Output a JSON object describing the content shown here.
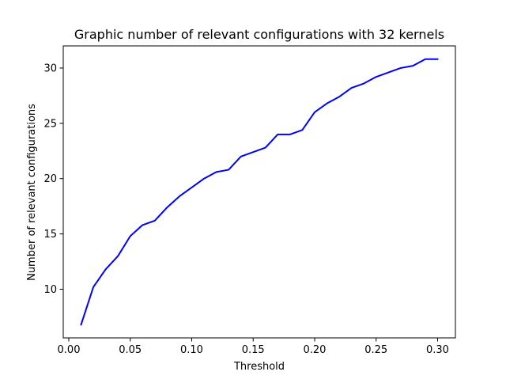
{
  "chart_data": {
    "type": "line",
    "title": "Graphic number of relevant configurations with 32 kernels",
    "xlabel": "Threshold",
    "ylabel": "Number of relevant configurations",
    "xlim": [
      -0.0045,
      0.3145
    ],
    "ylim": [
      5.6,
      32.0
    ],
    "x_ticks": [
      0.0,
      0.05,
      0.1,
      0.15,
      0.2,
      0.25,
      0.3
    ],
    "x_tick_labels": [
      "0.00",
      "0.05",
      "0.10",
      "0.15",
      "0.20",
      "0.25",
      "0.30"
    ],
    "y_ticks": [
      10,
      15,
      20,
      25,
      30
    ],
    "y_tick_labels": [
      "10",
      "15",
      "20",
      "25",
      "30"
    ],
    "grid": false,
    "legend": "none",
    "series": [
      {
        "color": "#0000ff",
        "x": [
          0.01,
          0.02,
          0.03,
          0.04,
          0.05,
          0.06,
          0.07,
          0.08,
          0.09,
          0.1,
          0.11,
          0.12,
          0.13,
          0.14,
          0.15,
          0.16,
          0.17,
          0.18,
          0.19,
          0.2,
          0.21,
          0.22,
          0.23,
          0.24,
          0.25,
          0.26,
          0.27,
          0.28,
          0.29,
          0.3
        ],
        "y": [
          6.8,
          10.2,
          11.8,
          13.0,
          14.8,
          15.8,
          16.2,
          17.4,
          18.4,
          19.2,
          20.0,
          20.6,
          20.8,
          22.0,
          22.4,
          22.8,
          24.0,
          24.0,
          24.4,
          26.0,
          26.8,
          27.4,
          28.2,
          28.6,
          29.2,
          29.6,
          30.0,
          30.2,
          30.8,
          30.8
        ]
      }
    ]
  }
}
